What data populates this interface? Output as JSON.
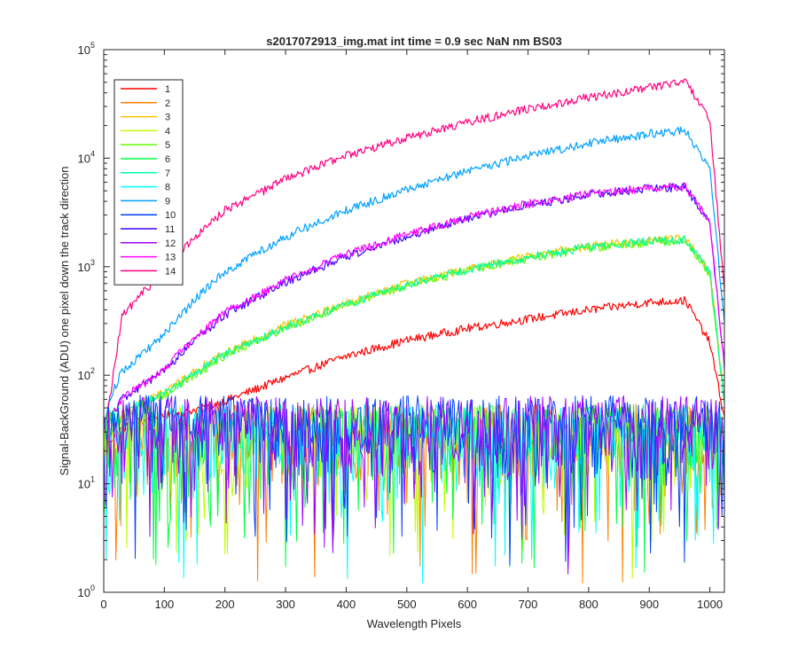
{
  "chart_data": {
    "type": "line",
    "title": "s2017072913_img.mat int time = 0.9 sec  NaN nm BS03",
    "xlabel": "Wavelength Pixels",
    "ylabel": "Signal-BackGround (ADU) one pixel down the track direction",
    "xlim": [
      0,
      1024
    ],
    "ylim": [
      1,
      100000
    ],
    "yscale": "log",
    "x_ticks": [
      0,
      100,
      200,
      300,
      400,
      500,
      600,
      700,
      800,
      900,
      1000
    ],
    "y_ticks": [
      {
        "base": "10",
        "exp": "0",
        "value": 1
      },
      {
        "base": "10",
        "exp": "1",
        "value": 10
      },
      {
        "base": "10",
        "exp": "2",
        "value": 100
      },
      {
        "base": "10",
        "exp": "3",
        "value": 1000
      },
      {
        "base": "10",
        "exp": "4",
        "value": 10000
      },
      {
        "base": "10",
        "exp": "5",
        "value": 100000
      }
    ],
    "grid": false,
    "legend_position": "top-left",
    "x": [
      0,
      10,
      30,
      60,
      100,
      150,
      200,
      300,
      400,
      500,
      600,
      700,
      800,
      900,
      960,
      1000,
      1024
    ],
    "series": [
      {
        "name": "1",
        "color": "#ff0000",
        "noise": false,
        "values": [
          20,
          25,
          32,
          38,
          42,
          48,
          58,
          95,
          150,
          210,
          270,
          330,
          400,
          470,
          490,
          200,
          40
        ]
      },
      {
        "name": "2",
        "color": "#ff7f00",
        "noise": true,
        "values": [
          25,
          28,
          30,
          32,
          30,
          30,
          30,
          30,
          30,
          30,
          30,
          30,
          30,
          30,
          30,
          30,
          25
        ]
      },
      {
        "name": "3",
        "color": "#ffc000",
        "noise": false,
        "values": [
          25,
          30,
          40,
          55,
          70,
          110,
          160,
          290,
          460,
          700,
          950,
          1250,
          1550,
          1750,
          1820,
          900,
          60
        ]
      },
      {
        "name": "4",
        "color": "#c0ff00",
        "noise": true,
        "values": [
          25,
          28,
          30,
          32,
          30,
          30,
          30,
          30,
          30,
          30,
          30,
          30,
          30,
          30,
          30,
          30,
          25
        ]
      },
      {
        "name": "5",
        "color": "#60ff00",
        "noise": false,
        "values": [
          25,
          30,
          40,
          52,
          66,
          100,
          150,
          275,
          440,
          670,
          920,
          1200,
          1480,
          1680,
          1740,
          860,
          55
        ]
      },
      {
        "name": "6",
        "color": "#00ff40",
        "noise": true,
        "values": [
          25,
          28,
          30,
          32,
          30,
          30,
          30,
          30,
          30,
          30,
          30,
          30,
          30,
          30,
          30,
          30,
          25
        ]
      },
      {
        "name": "7",
        "color": "#00ffa0",
        "noise": false,
        "values": [
          25,
          30,
          40,
          54,
          68,
          105,
          155,
          282,
          450,
          685,
          935,
          1225,
          1515,
          1715,
          1780,
          880,
          58
        ]
      },
      {
        "name": "8",
        "color": "#00ffff",
        "noise": true,
        "values": [
          25,
          28,
          30,
          32,
          30,
          30,
          30,
          30,
          30,
          30,
          30,
          30,
          30,
          30,
          30,
          30,
          25
        ]
      },
      {
        "name": "9",
        "color": "#00a0ff",
        "noise": false,
        "values": [
          35,
          60,
          110,
          150,
          240,
          500,
          900,
          1900,
          3300,
          5200,
          7600,
          10500,
          13800,
          16800,
          18000,
          8000,
          300
        ]
      },
      {
        "name": "10",
        "color": "#0040ff",
        "noise": true,
        "values": [
          30,
          32,
          35,
          38,
          36,
          36,
          36,
          36,
          36,
          36,
          36,
          36,
          36,
          36,
          36,
          36,
          30
        ]
      },
      {
        "name": "11",
        "color": "#4000ff",
        "noise": false,
        "values": [
          30,
          40,
          60,
          78,
          110,
          210,
          360,
          720,
          1250,
          1900,
          2750,
          3700,
          4600,
          5300,
          5400,
          2500,
          120
        ]
      },
      {
        "name": "12",
        "color": "#a000ff",
        "noise": true,
        "values": [
          30,
          32,
          35,
          38,
          36,
          36,
          36,
          36,
          36,
          36,
          36,
          36,
          36,
          36,
          36,
          36,
          30
        ]
      },
      {
        "name": "13",
        "color": "#ff00ff",
        "noise": false,
        "values": [
          30,
          40,
          60,
          80,
          115,
          220,
          380,
          750,
          1300,
          1980,
          2850,
          3800,
          4700,
          5350,
          5450,
          2550,
          125
        ]
      },
      {
        "name": "14",
        "color": "#ff0080",
        "noise": false,
        "values": [
          30,
          60,
          350,
          550,
          900,
          1900,
          3300,
          6400,
          10500,
          15500,
          21500,
          28500,
          36500,
          45000,
          51000,
          22000,
          600
        ]
      }
    ]
  }
}
